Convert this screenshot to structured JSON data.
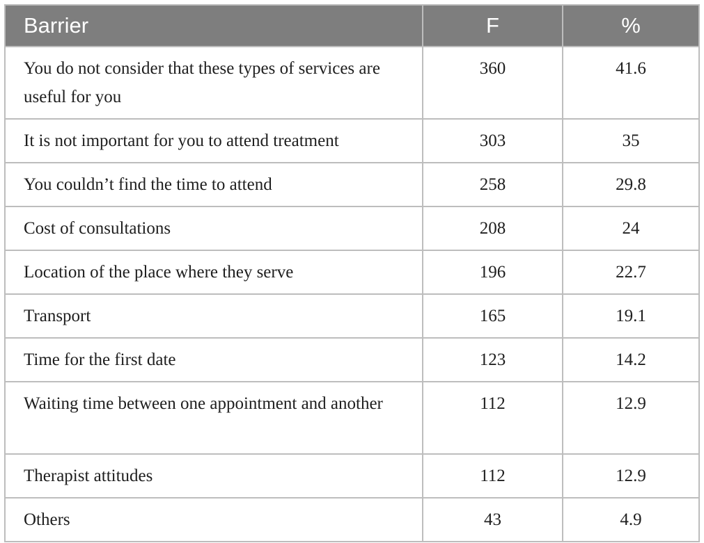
{
  "table": {
    "headers": {
      "barrier": "Barrier",
      "f": "F",
      "pct": "%"
    },
    "rows": [
      {
        "barrier": "You do not consider that these types of services are useful for you",
        "f": "360",
        "pct": "41.6"
      },
      {
        "barrier": "It is not important for you to attend treatment",
        "f": "303",
        "pct": "35"
      },
      {
        "barrier": "You couldn’t find the time to attend",
        "f": "258",
        "pct": "29.8"
      },
      {
        "barrier": "Cost of consultations",
        "f": "208",
        "pct": "24"
      },
      {
        "barrier": "Location of the place where they serve",
        "f": "196",
        "pct": "22.7"
      },
      {
        "barrier": "Transport",
        "f": "165",
        "pct": "19.1"
      },
      {
        "barrier": "Time for the first date",
        "f": "123",
        "pct": "14.2"
      },
      {
        "barrier": "Waiting time between one appointment and another",
        "f": "112",
        "pct": "12.9"
      },
      {
        "barrier": "Therapist attitudes",
        "f": "112",
        "pct": "12.9"
      },
      {
        "barrier": "Others",
        "f": "43",
        "pct": "4.9"
      }
    ]
  },
  "colors": {
    "header_bg": "#7e7e7e",
    "header_text": "#ffffff",
    "border": "#bdbdbd",
    "body_text": "#1e1e1e"
  }
}
